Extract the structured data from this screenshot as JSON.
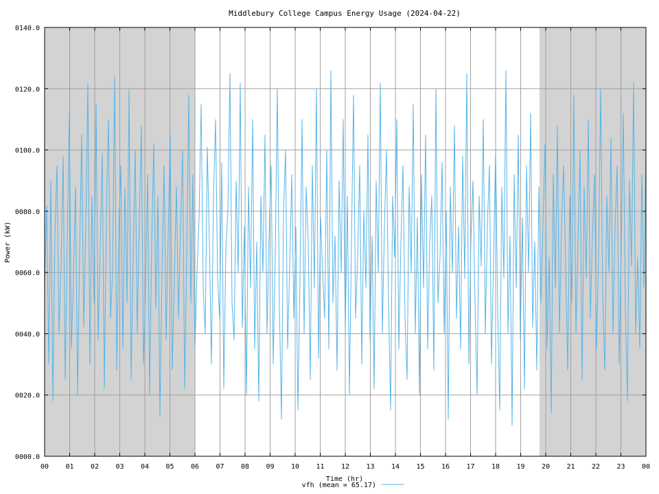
{
  "chart_data": {
    "type": "line",
    "title": "Middlebury College Campus Energy Usage (2024-04-22)",
    "xlabel": "Time (hr)",
    "ylabel": "Power (kW)",
    "xlim": [
      0,
      24
    ],
    "ylim": [
      0,
      140
    ],
    "x_ticks": [
      0,
      1,
      2,
      3,
      4,
      5,
      6,
      7,
      8,
      9,
      10,
      11,
      12,
      13,
      14,
      15,
      16,
      17,
      18,
      19,
      20,
      21,
      22,
      23,
      24
    ],
    "x_tick_labels": [
      "00",
      "01",
      "02",
      "03",
      "04",
      "05",
      "06",
      "07",
      "08",
      "09",
      "10",
      "11",
      "12",
      "13",
      "14",
      "15",
      "16",
      "17",
      "18",
      "19",
      "20",
      "21",
      "22",
      "23",
      "00"
    ],
    "y_ticks": [
      0,
      20,
      40,
      60,
      80,
      100,
      120,
      140
    ],
    "y_tick_labels": [
      "0000.0",
      "0020.0",
      "0040.0",
      "0060.0",
      "0080.0",
      "0100.0",
      "0120.0",
      "0140.0"
    ],
    "grid": true,
    "shaded_ranges_hours": [
      [
        0,
        6
      ],
      [
        19.75,
        24
      ]
    ],
    "shade_color": "#d3d3d3",
    "series": [
      {
        "name": "vfh",
        "legend_label": "vfh (mean = 65.17)",
        "color": "#56b4e9",
        "mean": 65.17,
        "sample_interval_hours": 0.04166667,
        "values": [
          55,
          82,
          30,
          90,
          18,
          72,
          95,
          40,
          63,
          98,
          25,
          70,
          112,
          35,
          58,
          88,
          20,
          66,
          105,
          42,
          75,
          122,
          30,
          85,
          50,
          115,
          38,
          68,
          99,
          22,
          80,
          110,
          45,
          60,
          124,
          28,
          72,
          95,
          35,
          88,
          50,
          120,
          25,
          65,
          100,
          40,
          78,
          108,
          30,
          55,
          92,
          20,
          70,
          102,
          48,
          85,
          13,
          60,
          95,
          38,
          72,
          105,
          28,
          58,
          88,
          45,
          75,
          100,
          22,
          66,
          118,
          50,
          92,
          35,
          60,
          78,
          115,
          55,
          40,
          101,
          70,
          30,
          85,
          110,
          58,
          45,
          96,
          22,
          68,
          80,
          125,
          50,
          38,
          90,
          60,
          122,
          42,
          75,
          20,
          88,
          55,
          110,
          35,
          70,
          18,
          85,
          60,
          105,
          40,
          72,
          95,
          30,
          66,
          120,
          50,
          12,
          80,
          100,
          35,
          62,
          92,
          45,
          75,
          15,
          58,
          110,
          40,
          88,
          70,
          25,
          95,
          55,
          120,
          32,
          78,
          60,
          45,
          100,
          35,
          126,
          50,
          72,
          28,
          90,
          60,
          110,
          40,
          85,
          20,
          70,
          118,
          45,
          65,
          95,
          30,
          80,
          55,
          105,
          38,
          72,
          22,
          90,
          60,
          122,
          40,
          75,
          100,
          50,
          15,
          85,
          65,
          110,
          35,
          70,
          95,
          45,
          25,
          88,
          60,
          115,
          40,
          78,
          20,
          92,
          55,
          105,
          35,
          70,
          85,
          28,
          120,
          50,
          65,
          96,
          40,
          80,
          12,
          88,
          60,
          108,
          45,
          75,
          35,
          98,
          58,
          125,
          30,
          70,
          90,
          50,
          20,
          85,
          62,
          110,
          40,
          75,
          95,
          30,
          65,
          100,
          48,
          15,
          88,
          58,
          126,
          40,
          72,
          10,
          92,
          55,
          105,
          38,
          78,
          22,
          95,
          60,
          112,
          42,
          70,
          28,
          88,
          50,
          76,
          102,
          35,
          65,
          14,
          92,
          55,
          108,
          40,
          75,
          95,
          62,
          28,
          85,
          50,
          118,
          40,
          70,
          100,
          25,
          88,
          58,
          110,
          45,
          72,
          92,
          35,
          66,
          120,
          52,
          28,
          85,
          60,
          104,
          40,
          75,
          95,
          30,
          68,
          112,
          48,
          18,
          90,
          62,
          122,
          40,
          65,
          35,
          92,
          55,
          100
        ]
      }
    ]
  }
}
